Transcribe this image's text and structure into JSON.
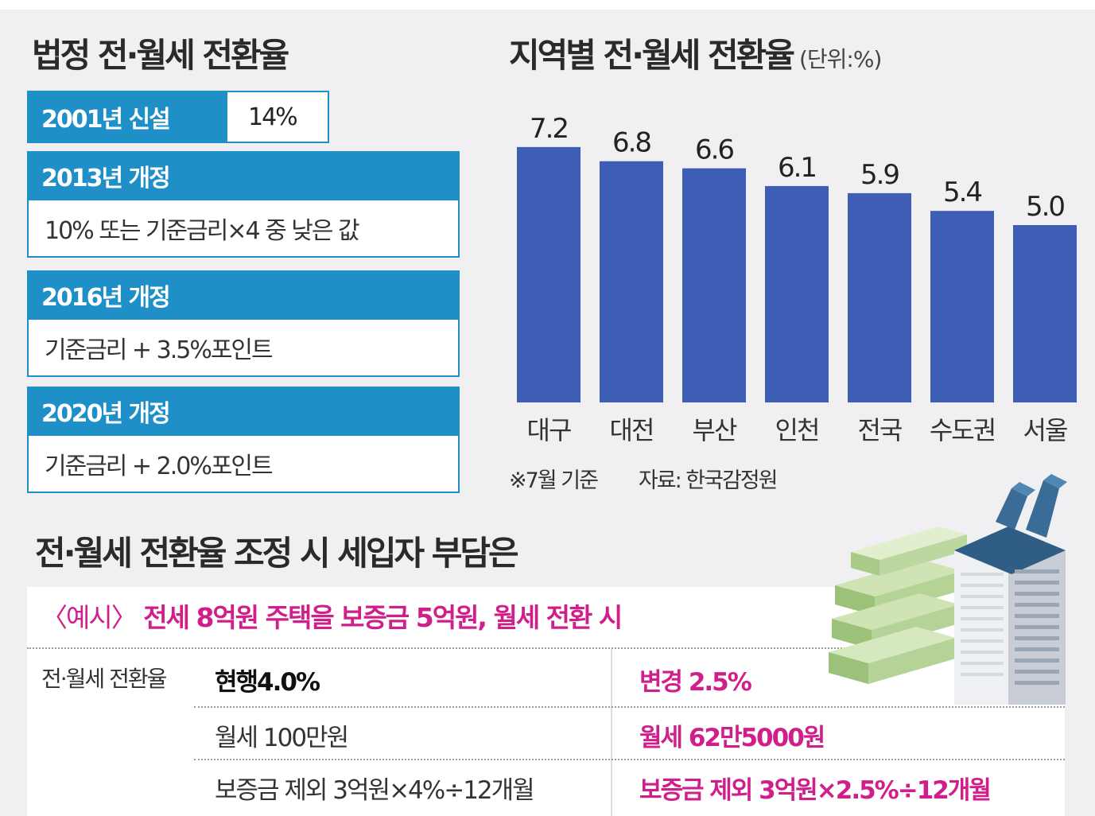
{
  "left": {
    "title": "법정 전·월세 전환율",
    "row_2001": {
      "label": "2001년 신설",
      "value": "14%"
    },
    "revisions": [
      {
        "header": "2013년 개정",
        "body": "10% 또는 기준금리×4 중 낮은 값"
      },
      {
        "header": "2016년 개정",
        "body": "기준금리 + 3.5%포인트"
      },
      {
        "header": "2020년 개정",
        "body": "기준금리 + 2.0%포인트"
      }
    ]
  },
  "chart_data": {
    "type": "bar",
    "title": "지역별 전·월세 전환율",
    "unit_label": "(단위:%)",
    "categories": [
      "대구",
      "대전",
      "부산",
      "인천",
      "전국",
      "수도권",
      "서울"
    ],
    "values": [
      7.2,
      6.8,
      6.6,
      6.1,
      5.9,
      5.4,
      5.0
    ],
    "value_labels": [
      "7.2",
      "6.8",
      "6.6",
      "6.1",
      "5.9",
      "5.4",
      "5.0"
    ],
    "xlabel": "",
    "ylabel": "",
    "bar_color": "#3d5eb4",
    "note": "※7월 기준",
    "source": "자료: 한국감정원"
  },
  "bottom": {
    "title": "전·월세 전환율 조정 시 세입자 부담은",
    "example_bracket": "〈예시〉",
    "example_text": "전세 8억원 주택을 보증금 5억원, 월세 전환 시",
    "rate_label": "전·월세 전환율",
    "current_rate": "현행4.0%",
    "changed_rate": "변경 2.5%",
    "current_rent": "월세 100만원",
    "changed_rent": "월세 62만5000원",
    "current_formula": "보증금 제외 3억원×4%÷12개월",
    "changed_formula": "보증금 제외 3억원×2.5%÷12개월"
  },
  "colors": {
    "accent_blue": "#1f8fc8",
    "bar_blue": "#3d5eb4",
    "highlight_pink": "#d01f8a"
  }
}
